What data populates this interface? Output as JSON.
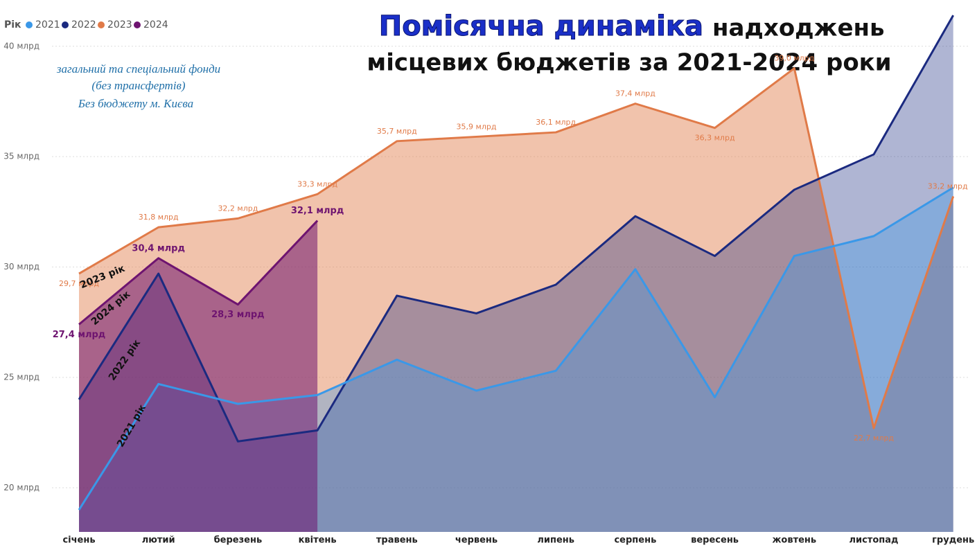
{
  "chart_data": {
    "type": "area",
    "title": [
      "Помісячна динаміка",
      "надходжень",
      "місцевих бюджетів за 2021-2024 роки"
    ],
    "subtitle": [
      "загальний та спеціальний фонди",
      "(без трансфертів)",
      "Без бюджету м. Києва"
    ],
    "legend_title": "Рік",
    "annotations": [
      "2023 рік",
      "2024 рік",
      "2022 рік",
      "2021 рік"
    ],
    "categories": [
      "січень",
      "лютий",
      "березень",
      "квітень",
      "травень",
      "червень",
      "липень",
      "серпень",
      "вересень",
      "жовтень",
      "листопад",
      "грудень"
    ],
    "series": [
      {
        "name": "2021",
        "color": "#3a98e8",
        "values": [
          19.0,
          24.7,
          23.8,
          24.2,
          25.8,
          24.4,
          25.3,
          29.9,
          24.1,
          30.5,
          31.4,
          33.6
        ]
      },
      {
        "name": "2022",
        "color": "#1b2a80",
        "values": [
          24.0,
          29.7,
          22.1,
          22.6,
          28.7,
          27.9,
          29.2,
          32.3,
          30.5,
          33.5,
          35.1,
          41.4
        ]
      },
      {
        "name": "2023",
        "color": "#e07a48",
        "values": [
          29.7,
          31.8,
          32.2,
          33.3,
          35.7,
          35.9,
          36.1,
          37.4,
          36.3,
          39.0,
          22.7,
          33.2
        ],
        "value_labels": [
          "29,7 млрд",
          "31,8 млрд",
          "32,2 млрд",
          "33,3 млрд",
          "35,7 млрд",
          "35,9 млрд",
          "36,1 млрд",
          "37,4 млрд",
          "36,3 млрд",
          "39,0 млрд",
          "22,7 млрд",
          "33,2 млрд"
        ]
      },
      {
        "name": "2024",
        "color": "#6e1470",
        "values": [
          27.4,
          30.4,
          28.3,
          32.1,
          null,
          null,
          null,
          null,
          null,
          null,
          null,
          null
        ],
        "value_labels": [
          "27,4 млрд",
          "30,4 млрд",
          "28,3 млрд",
          "32,1 млрд",
          null,
          null,
          null,
          null,
          null,
          null,
          null,
          null
        ]
      }
    ],
    "ylim": [
      18,
      42
    ],
    "yticks": [
      {
        "value": 20,
        "label": "20 млрд"
      },
      {
        "value": 25,
        "label": "25 млрд"
      },
      {
        "value": 30,
        "label": "30 млрд"
      },
      {
        "value": 35,
        "label": "35 млрд"
      },
      {
        "value": 40,
        "label": "40 млрд"
      }
    ],
    "grid": true
  }
}
